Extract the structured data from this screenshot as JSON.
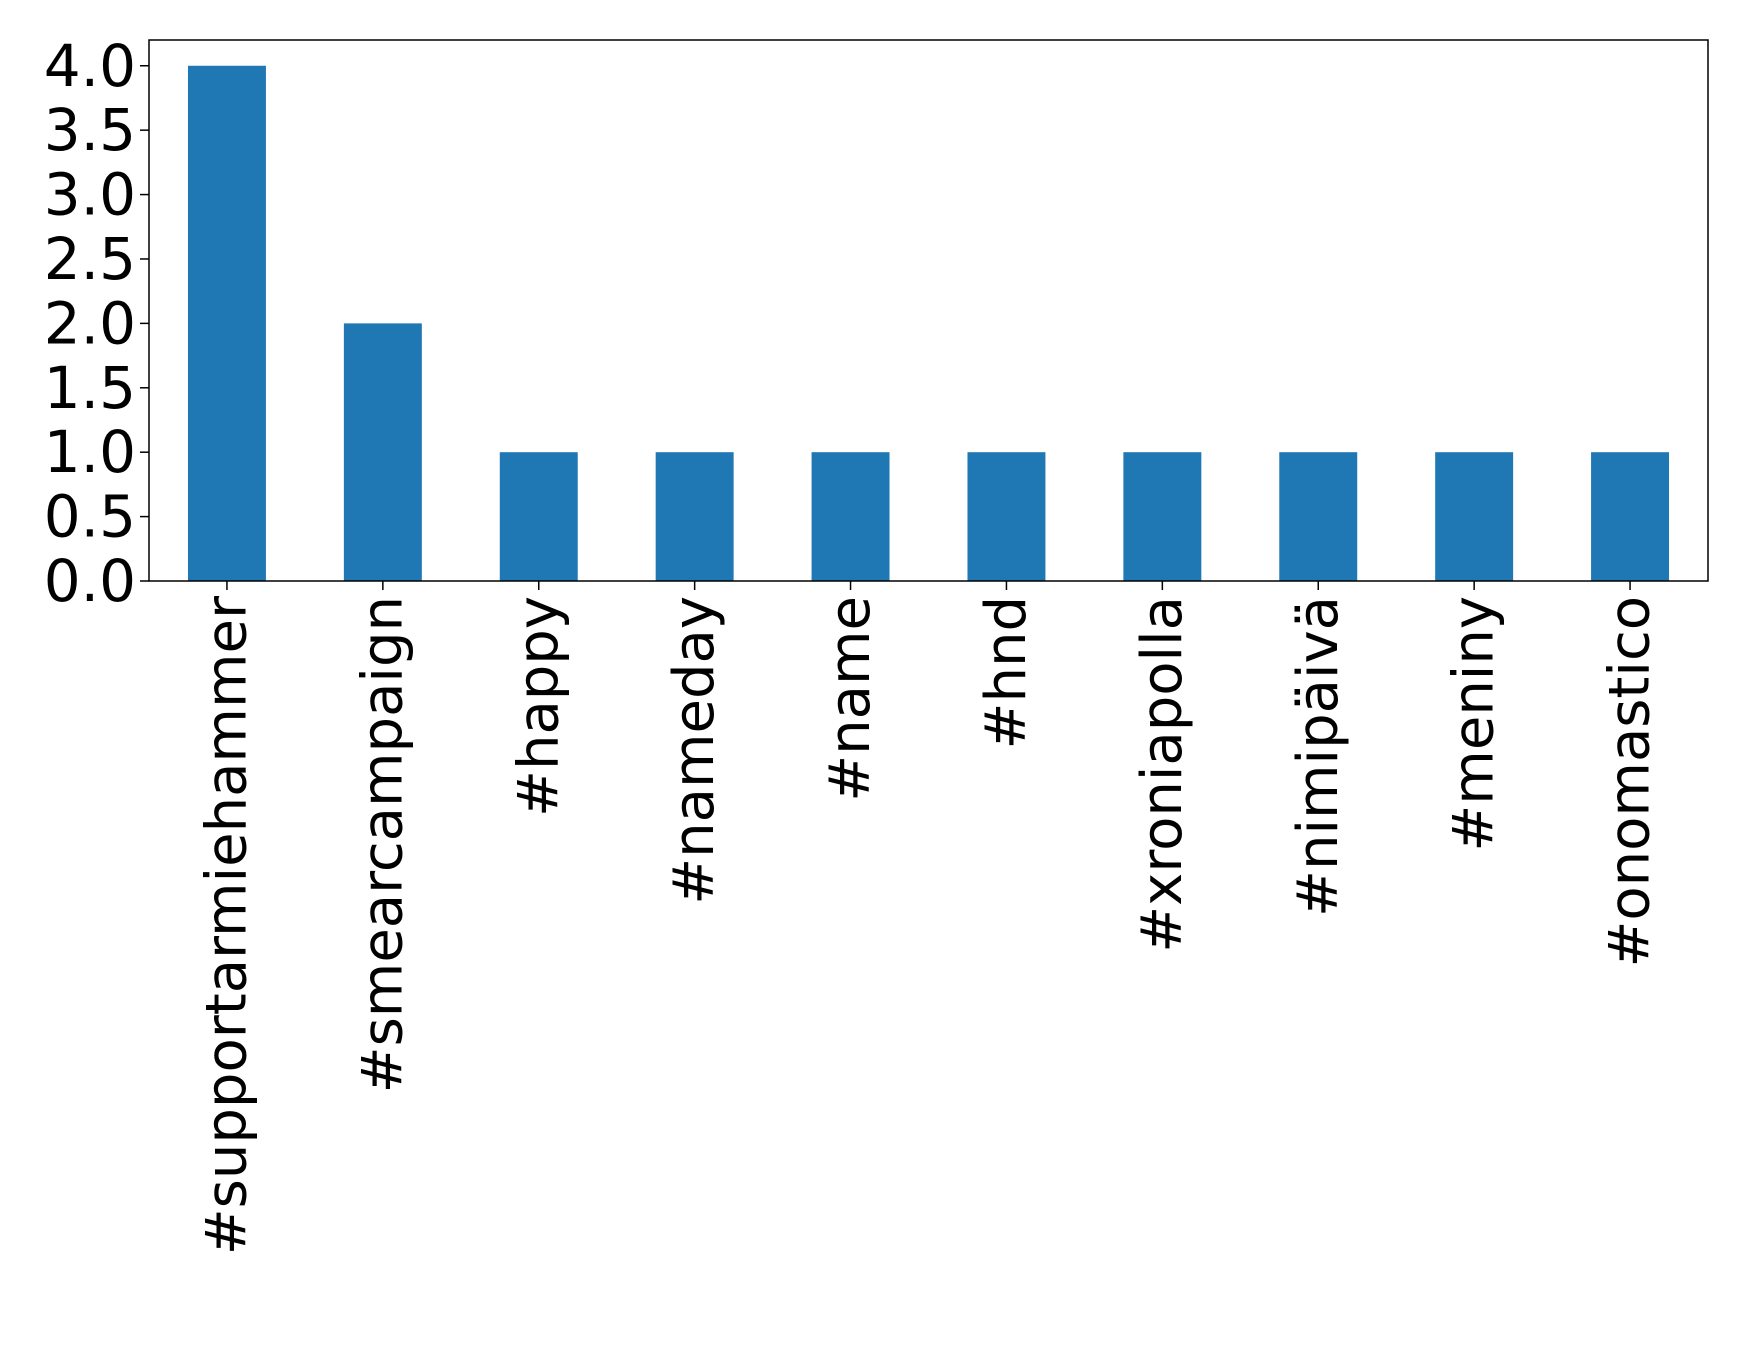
{
  "chart_data": {
    "type": "bar",
    "categories": [
      "#supportarmiehammer",
      "#smearcampaign",
      "#happy",
      "#nameday",
      "#name",
      "#hnd",
      "#xroniapolla",
      "#nimipäivä",
      "#meniny",
      "#onomastico"
    ],
    "values": [
      4,
      2,
      1,
      1,
      1,
      1,
      1,
      1,
      1,
      1
    ],
    "color": "#1f77b4",
    "ylim": [
      0,
      4.2
    ],
    "yticks": [
      {
        "value": 0,
        "label": "0.0"
      },
      {
        "value": 0.5,
        "label": "0.5"
      },
      {
        "value": 1,
        "label": "1.0"
      },
      {
        "value": 1.5,
        "label": "1.5"
      },
      {
        "value": 2,
        "label": "2.0"
      },
      {
        "value": 2.5,
        "label": "2.5"
      },
      {
        "value": 3,
        "label": "3.0"
      },
      {
        "value": 3.5,
        "label": "3.5"
      },
      {
        "value": 4,
        "label": "4.0"
      }
    ],
    "grid": false
  }
}
